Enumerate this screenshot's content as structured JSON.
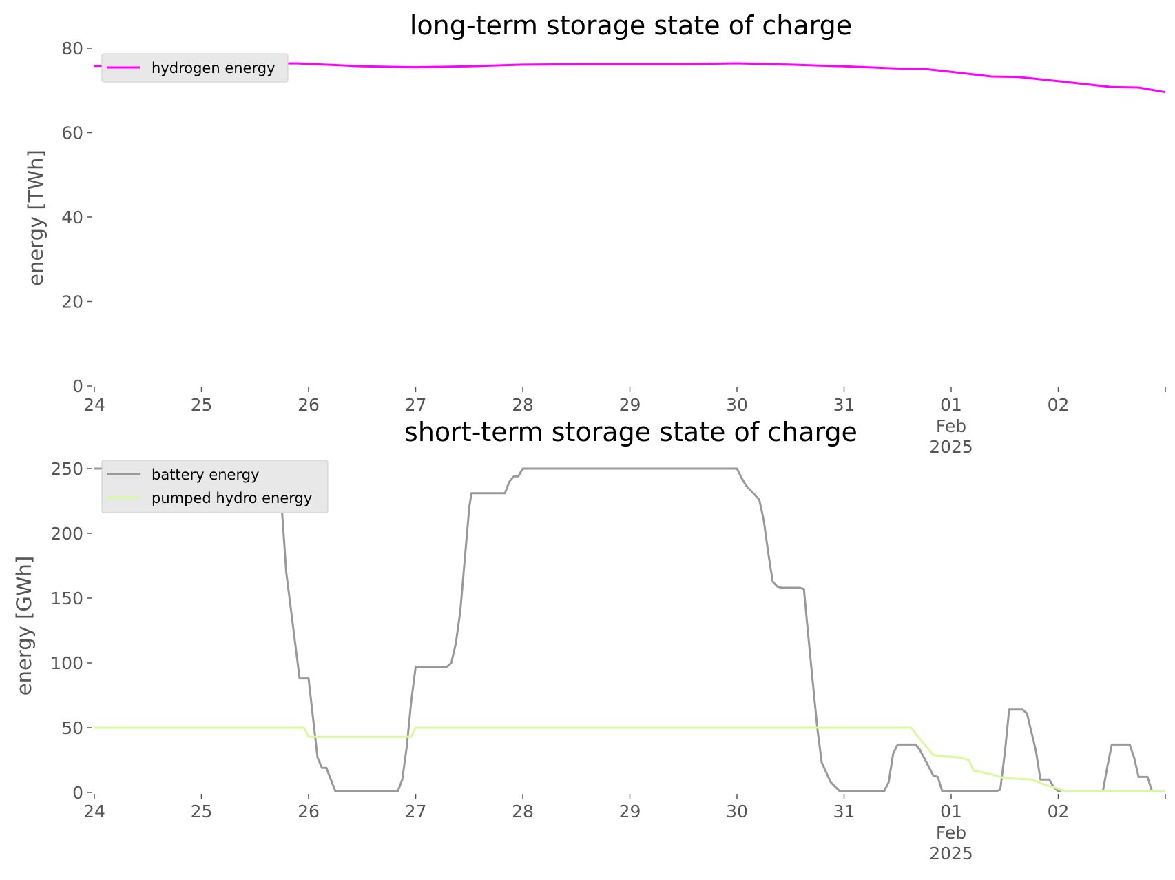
{
  "chart_data": [
    {
      "type": "line",
      "title": "long-term storage state of charge",
      "xlabel": "",
      "ylabel": "energy [TWh]",
      "ylim": [
        0,
        80
      ],
      "yticks": [
        "0",
        "20",
        "40",
        "60",
        "80"
      ],
      "xlim": [
        "2025-01-24",
        "2025-02-03"
      ],
      "xticks": [
        {
          "date": "2025-01-24",
          "label": "24"
        },
        {
          "date": "2025-01-25",
          "label": "25"
        },
        {
          "date": "2025-01-26",
          "label": "26"
        },
        {
          "date": "2025-01-27",
          "label": "27"
        },
        {
          "date": "2025-01-28",
          "label": "28"
        },
        {
          "date": "2025-01-29",
          "label": "29"
        },
        {
          "date": "2025-01-30",
          "label": "30"
        },
        {
          "date": "2025-01-31",
          "label": "31"
        },
        {
          "date": "2025-02-01",
          "label": "01",
          "sub1": "Feb",
          "sub2": "2025"
        },
        {
          "date": "2025-02-02",
          "label": "02"
        },
        {
          "date": "2025-02-03",
          "label": ""
        }
      ],
      "grid": false,
      "legend_position": "top-left",
      "series": [
        {
          "name": "hydrogen energy",
          "color": "#ff00ff",
          "points": [
            [
              "2025-01-24 00:00",
              75.8
            ],
            [
              "2025-01-24 12:00",
              76.0
            ],
            [
              "2025-01-25 00:00",
              76.2
            ],
            [
              "2025-01-25 12:00",
              76.3
            ],
            [
              "2025-01-25 21:00",
              76.4
            ],
            [
              "2025-01-26 06:00",
              76.0
            ],
            [
              "2025-01-26 12:00",
              75.7
            ],
            [
              "2025-01-27 00:00",
              75.5
            ],
            [
              "2025-01-27 12:00",
              75.7
            ],
            [
              "2025-01-28 00:00",
              76.1
            ],
            [
              "2025-01-28 12:00",
              76.2
            ],
            [
              "2025-01-29 00:00",
              76.2
            ],
            [
              "2025-01-29 12:00",
              76.2
            ],
            [
              "2025-01-30 00:00",
              76.4
            ],
            [
              "2025-01-30 12:00",
              76.1
            ],
            [
              "2025-01-30 18:00",
              75.9
            ],
            [
              "2025-01-31 00:00",
              75.7
            ],
            [
              "2025-01-31 12:00",
              75.2
            ],
            [
              "2025-01-31 18:00",
              75.1
            ],
            [
              "2025-02-01 00:00",
              74.4
            ],
            [
              "2025-02-01 09:00",
              73.3
            ],
            [
              "2025-02-01 15:00",
              73.2
            ],
            [
              "2025-02-02 00:00",
              72.2
            ],
            [
              "2025-02-02 12:00",
              70.8
            ],
            [
              "2025-02-02 18:00",
              70.7
            ],
            [
              "2025-02-03 00:00",
              69.6
            ]
          ]
        }
      ]
    },
    {
      "type": "line",
      "title": "short-term storage state of charge",
      "xlabel": "",
      "ylabel": "energy [GWh]",
      "ylim": [
        0,
        250
      ],
      "yticks": [
        "0",
        "50",
        "100",
        "150",
        "200",
        "250"
      ],
      "xlim": [
        "2025-01-24",
        "2025-02-03"
      ],
      "xticks": [
        {
          "date": "2025-01-24",
          "label": "24"
        },
        {
          "date": "2025-01-25",
          "label": "25"
        },
        {
          "date": "2025-01-26",
          "label": "26"
        },
        {
          "date": "2025-01-27",
          "label": "27"
        },
        {
          "date": "2025-01-28",
          "label": "28"
        },
        {
          "date": "2025-01-29",
          "label": "29"
        },
        {
          "date": "2025-01-30",
          "label": "30"
        },
        {
          "date": "2025-01-31",
          "label": "31"
        },
        {
          "date": "2025-02-01",
          "label": "01",
          "sub1": "Feb",
          "sub2": "2025"
        },
        {
          "date": "2025-02-02",
          "label": "02"
        },
        {
          "date": "2025-02-03",
          "label": ""
        }
      ],
      "grid": false,
      "legend_position": "top-left",
      "series": [
        {
          "name": "battery energy",
          "color": "#999999",
          "points": [
            [
              "2025-01-24 00:00",
              250
            ],
            [
              "2025-01-25 17:00",
              250
            ],
            [
              "2025-01-25 18:00",
              220
            ],
            [
              "2025-01-25 19:00",
              170
            ],
            [
              "2025-01-25 22:00",
              88
            ],
            [
              "2025-01-26 00:00",
              88
            ],
            [
              "2025-01-26 02:00",
              27
            ],
            [
              "2025-01-26 03:00",
              19
            ],
            [
              "2025-01-26 04:00",
              19
            ],
            [
              "2025-01-26 06:00",
              1
            ],
            [
              "2025-01-26 20:00",
              1
            ],
            [
              "2025-01-26 21:00",
              10
            ],
            [
              "2025-01-26 22:00",
              35
            ],
            [
              "2025-01-26 23:00",
              70
            ],
            [
              "2025-01-27 00:00",
              97
            ],
            [
              "2025-01-27 07:00",
              97
            ],
            [
              "2025-01-27 08:00",
              100
            ],
            [
              "2025-01-27 09:00",
              115
            ],
            [
              "2025-01-27 10:00",
              140
            ],
            [
              "2025-01-27 11:00",
              180
            ],
            [
              "2025-01-27 12:00",
              220
            ],
            [
              "2025-01-27 12:30",
              231
            ],
            [
              "2025-01-27 20:00",
              231
            ],
            [
              "2025-01-27 21:00",
              240
            ],
            [
              "2025-01-27 22:00",
              244
            ],
            [
              "2025-01-27 23:00",
              244
            ],
            [
              "2025-01-28 00:00",
              250
            ],
            [
              "2025-01-30 00:00",
              250
            ],
            [
              "2025-01-30 01:00",
              243
            ],
            [
              "2025-01-30 02:00",
              237
            ],
            [
              "2025-01-30 05:00",
              226
            ],
            [
              "2025-01-30 06:00",
              210
            ],
            [
              "2025-01-30 07:00",
              185
            ],
            [
              "2025-01-30 08:00",
              163
            ],
            [
              "2025-01-30 09:00",
              159
            ],
            [
              "2025-01-30 10:00",
              158
            ],
            [
              "2025-01-30 14:00",
              158
            ],
            [
              "2025-01-30 15:00",
              157
            ],
            [
              "2025-01-30 16:00",
              120
            ],
            [
              "2025-01-30 17:00",
              85
            ],
            [
              "2025-01-30 18:00",
              50
            ],
            [
              "2025-01-30 19:00",
              23
            ],
            [
              "2025-01-30 21:00",
              8
            ],
            [
              "2025-01-30 23:00",
              1
            ],
            [
              "2025-01-31 09:00",
              1
            ],
            [
              "2025-01-31 10:00",
              8
            ],
            [
              "2025-01-31 11:00",
              30
            ],
            [
              "2025-01-31 12:00",
              37
            ],
            [
              "2025-01-31 16:00",
              37
            ],
            [
              "2025-01-31 17:00",
              33
            ],
            [
              "2025-01-31 20:00",
              13
            ],
            [
              "2025-01-31 21:00",
              12
            ],
            [
              "2025-01-31 22:00",
              1
            ],
            [
              "2025-02-01 10:00",
              1
            ],
            [
              "2025-02-01 11:00",
              2
            ],
            [
              "2025-02-01 12:00",
              30
            ],
            [
              "2025-02-01 13:00",
              64
            ],
            [
              "2025-02-01 16:00",
              64
            ],
            [
              "2025-02-01 17:00",
              61
            ],
            [
              "2025-02-01 19:00",
              32
            ],
            [
              "2025-02-01 20:00",
              10
            ],
            [
              "2025-02-01 22:00",
              10
            ],
            [
              "2025-02-01 23:00",
              4
            ],
            [
              "2025-02-02 00:00",
              1
            ],
            [
              "2025-02-02 10:00",
              1
            ],
            [
              "2025-02-02 11:00",
              20
            ],
            [
              "2025-02-02 12:00",
              37
            ],
            [
              "2025-02-02 16:00",
              37
            ],
            [
              "2025-02-02 17:00",
              27
            ],
            [
              "2025-02-02 18:00",
              12
            ],
            [
              "2025-02-02 20:00",
              12
            ],
            [
              "2025-02-02 21:00",
              1
            ],
            [
              "2025-02-03 00:00",
              1
            ]
          ]
        },
        {
          "name": "pumped hydro energy",
          "color": "#d9f99d",
          "points": [
            [
              "2025-01-24 00:00",
              50
            ],
            [
              "2025-01-25 23:00",
              50
            ],
            [
              "2025-01-26 00:00",
              43
            ],
            [
              "2025-01-26 23:00",
              43
            ],
            [
              "2025-01-27 00:00",
              50
            ],
            [
              "2025-01-31 15:00",
              50
            ],
            [
              "2025-01-31 18:00",
              37
            ],
            [
              "2025-01-31 20:00",
              29
            ],
            [
              "2025-01-31 22:00",
              28
            ],
            [
              "2025-02-01 02:00",
              27
            ],
            [
              "2025-02-01 04:00",
              25
            ],
            [
              "2025-02-01 05:00",
              17
            ],
            [
              "2025-02-01 09:00",
              14
            ],
            [
              "2025-02-01 12:00",
              11
            ],
            [
              "2025-02-01 18:00",
              10
            ],
            [
              "2025-02-01 21:00",
              6
            ],
            [
              "2025-02-02 00:00",
              3
            ],
            [
              "2025-02-02 01:00",
              1
            ],
            [
              "2025-02-03 00:00",
              1
            ]
          ]
        }
      ]
    }
  ]
}
